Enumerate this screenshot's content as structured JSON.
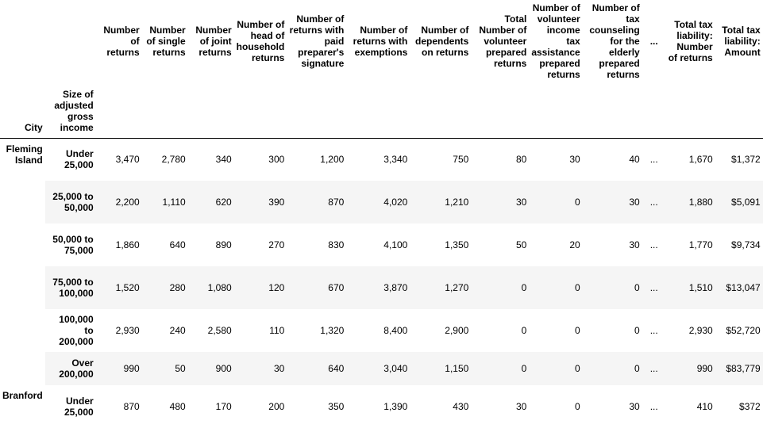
{
  "table": {
    "columns": [
      "Number of returns",
      "Number of single returns",
      "Number of joint returns",
      "Number of head of household returns",
      "Number of returns with paid preparer's signature",
      "Number of returns with exemptions",
      "Number of dependents on returns",
      "Total Number of volunteer prepared returns",
      "Number of volunteer income tax assistance prepared returns",
      "Number of tax counseling for the elderly prepared returns",
      "...",
      "Total tax liability: Number of returns",
      "Total tax liability: Amount"
    ],
    "index_names": [
      "City",
      "Size of adjusted gross income"
    ],
    "groups": [
      {
        "city": "Fleming Island",
        "rows": [
          {
            "size": "Under 25,000",
            "values": [
              "3,470",
              "2,780",
              "340",
              "300",
              "1,200",
              "3,340",
              "750",
              "80",
              "30",
              "40",
              "...",
              "1,670",
              "$1,372"
            ]
          },
          {
            "size": "25,000 to 50,000",
            "values": [
              "2,200",
              "1,110",
              "620",
              "390",
              "870",
              "4,020",
              "1,210",
              "30",
              "0",
              "30",
              "...",
              "1,880",
              "$5,091"
            ]
          },
          {
            "size": "50,000 to 75,000",
            "values": [
              "1,860",
              "640",
              "890",
              "270",
              "830",
              "4,100",
              "1,350",
              "50",
              "20",
              "30",
              "...",
              "1,770",
              "$9,734"
            ]
          },
          {
            "size": "75,000 to 100,000",
            "values": [
              "1,520",
              "280",
              "1,080",
              "120",
              "670",
              "3,870",
              "1,270",
              "0",
              "0",
              "0",
              "...",
              "1,510",
              "$13,047"
            ]
          },
          {
            "size": "100,000 to 200,000",
            "values": [
              "2,930",
              "240",
              "2,580",
              "110",
              "1,320",
              "8,400",
              "2,900",
              "0",
              "0",
              "0",
              "...",
              "2,930",
              "$52,720"
            ]
          },
          {
            "size": "Over 200,000",
            "values": [
              "990",
              "50",
              "900",
              "30",
              "640",
              "3,040",
              "1,150",
              "0",
              "0",
              "0",
              "...",
              "990",
              "$83,779"
            ]
          }
        ]
      },
      {
        "city": "Branford",
        "rows": [
          {
            "size": "Under 25,000",
            "values": [
              "870",
              "480",
              "170",
              "200",
              "350",
              "1,390",
              "430",
              "30",
              "0",
              "30",
              "...",
              "410",
              "$372"
            ]
          }
        ]
      }
    ]
  }
}
